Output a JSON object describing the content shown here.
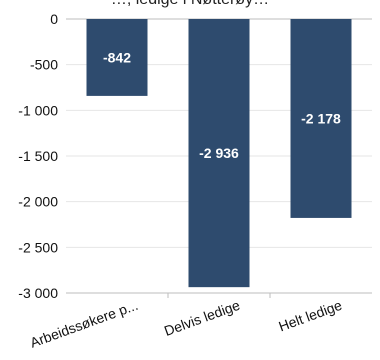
{
  "title": "…, ledige i Nøtterøy…",
  "chart_data": {
    "type": "bar",
    "title": "…, ledige i Nøtterøy…",
    "categories": [
      "Arbeidssøkere p...",
      "Delvis ledige",
      "Helt ledige"
    ],
    "values": [
      -842,
      -2936,
      -2178
    ],
    "value_labels": [
      "-842",
      "-2 936",
      "-2 178"
    ],
    "ylim": [
      -3000,
      0
    ],
    "yticks": [
      0,
      -500,
      -1000,
      -1500,
      -2000,
      -2500,
      -3000
    ],
    "ytick_labels": [
      "0",
      "-500",
      "-1 000",
      "-1 500",
      "-2 000",
      "-2 500",
      "-3 000"
    ],
    "xlabel": "",
    "ylabel": "",
    "grid": true,
    "bar_color": "#2e4b6e",
    "label_color": "#ffffff"
  }
}
